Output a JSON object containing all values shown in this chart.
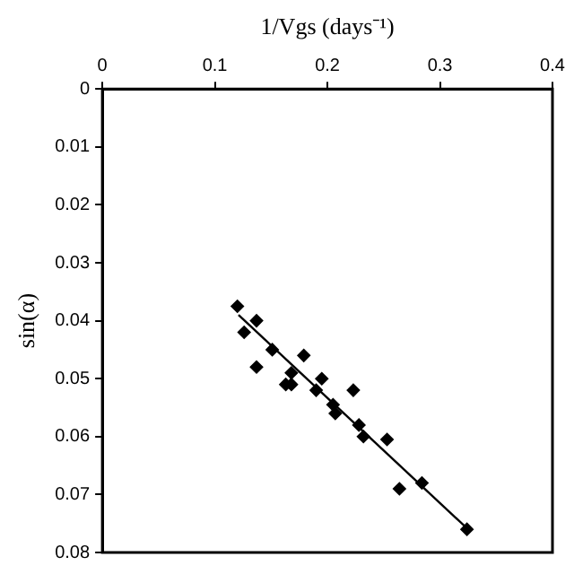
{
  "chart_data": {
    "type": "scatter",
    "xlabel": "1/Vgs (days⁻¹)",
    "ylabel": "sin(α)",
    "xlim": [
      0,
      0.4
    ],
    "xticks": [
      0,
      0.1,
      0.2,
      0.3,
      0.4
    ],
    "ylim": [
      0.08,
      0
    ],
    "yticks": [
      0,
      0.01,
      0.02,
      0.03,
      0.04,
      0.05,
      0.06,
      0.07,
      0.08
    ],
    "grid": false,
    "legend": false,
    "marker": "diamond",
    "series": [
      {
        "color": "#000000",
        "x": [
          0.12,
          0.126,
          0.137,
          0.137,
          0.15,
          0.151,
          0.163,
          0.168,
          0.168,
          0.179,
          0.19,
          0.195,
          0.205,
          0.207,
          0.223,
          0.228,
          0.232,
          0.253,
          0.264,
          0.284,
          0.324
        ],
        "values": [
          0.0375,
          0.042,
          0.04,
          0.048,
          null,
          0.045,
          0.051,
          0.051,
          0.049,
          0.046,
          0.052,
          0.05,
          0.0545,
          0.056,
          0.052,
          0.058,
          0.06,
          0.0605,
          0.069,
          0.068,
          0.076
        ]
      },
      {
        "type": "line",
        "color": "#000000",
        "marker": "none",
        "x": [
          0.121,
          0.325
        ],
        "values": [
          0.039,
          0.076
        ]
      }
    ]
  }
}
